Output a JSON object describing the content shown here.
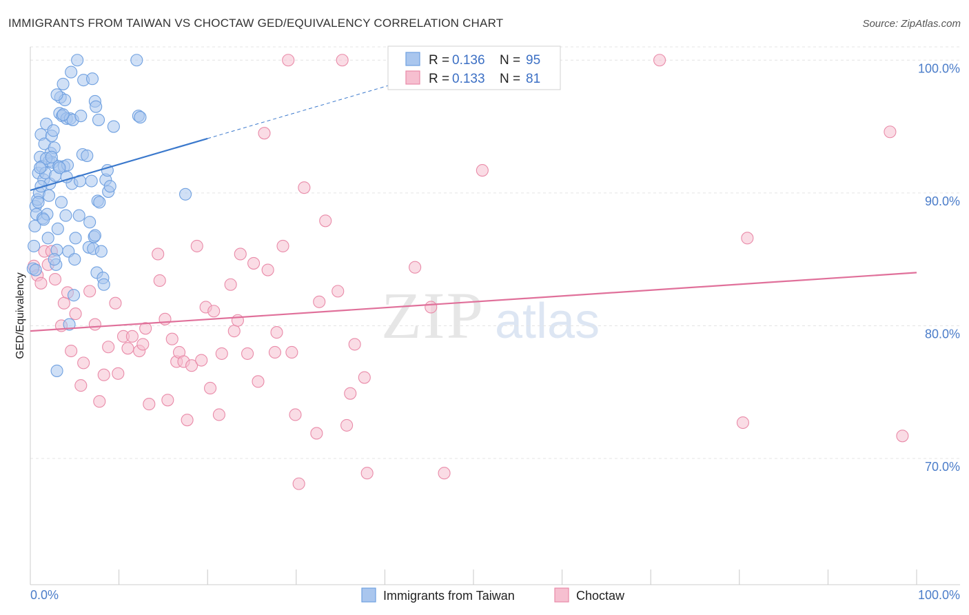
{
  "colors": {
    "blue": "#6fa0e0",
    "blue_fill": "#a9c6ee",
    "blue_line": "#3a78cc",
    "pink": "#e98aa8",
    "pink_fill": "#f6bfd0",
    "pink_line": "#e0709a",
    "grid": "#e4e4e4",
    "tick": "#4a7cc9"
  },
  "chart_data": {
    "type": "scatter",
    "title": "IMMIGRANTS FROM TAIWAN VS CHOCTAW GED/EQUIVALENCY CORRELATION CHART",
    "source": "Source: ZipAtlas.com",
    "ylabel": "GED/Equivalency",
    "xlabel": "",
    "xlim": [
      0,
      100
    ],
    "ylim": [
      60.5,
      101
    ],
    "x_tick_labels": {
      "left": "0.0%",
      "right": "100.0%"
    },
    "y_ticks": [
      {
        "value": 70,
        "label": "70.0%"
      },
      {
        "value": 80,
        "label": "80.0%"
      },
      {
        "value": 90,
        "label": "90.0%"
      },
      {
        "value": 100,
        "label": "100.0%"
      }
    ],
    "grid": true,
    "watermark": {
      "part1": "ZIP",
      "part2": "atlas"
    },
    "legend": {
      "entries": [
        {
          "r_label": "R = ",
          "r_value": "0.136",
          "n_label": "N = ",
          "n_value": "95"
        },
        {
          "r_label": "R = ",
          "r_value": "0.133",
          "n_label": "N = ",
          "n_value": " 81"
        }
      ]
    },
    "series": [
      {
        "name": "Immigrants from Taiwan",
        "trend": {
          "x0": 0,
          "y0": 90.2,
          "x1": 20,
          "y1": 94.1,
          "dash_to_x": 42,
          "dash_to_y": 98.4
        },
        "points": [
          [
            0.3,
            84.3
          ],
          [
            0.4,
            86.0
          ],
          [
            0.5,
            87.5
          ],
          [
            0.6,
            89.0
          ],
          [
            0.7,
            88.4
          ],
          [
            0.8,
            89.5
          ],
          [
            0.9,
            91.5
          ],
          [
            1.0,
            90.0
          ],
          [
            1.1,
            92.7
          ],
          [
            1.2,
            94.4
          ],
          [
            1.3,
            92.0
          ],
          [
            1.4,
            88.1
          ],
          [
            1.5,
            91.0
          ],
          [
            1.6,
            93.7
          ],
          [
            1.7,
            91.5
          ],
          [
            1.8,
            95.2
          ],
          [
            1.9,
            88.4
          ],
          [
            2.0,
            86.6
          ],
          [
            2.1,
            92.4
          ],
          [
            2.2,
            90.7
          ],
          [
            2.3,
            93.0
          ],
          [
            2.4,
            94.3
          ],
          [
            2.5,
            92.3
          ],
          [
            2.6,
            94.7
          ],
          [
            2.7,
            93.4
          ],
          [
            2.8,
            91.3
          ],
          [
            2.9,
            84.6
          ],
          [
            3.0,
            85.7
          ],
          [
            3.1,
            87.3
          ],
          [
            3.2,
            92.0
          ],
          [
            3.3,
            96.0
          ],
          [
            3.4,
            97.2
          ],
          [
            3.5,
            89.3
          ],
          [
            3.6,
            95.8
          ],
          [
            3.7,
            98.2
          ],
          [
            3.8,
            92.0
          ],
          [
            3.9,
            97.0
          ],
          [
            4.0,
            88.3
          ],
          [
            4.1,
            95.6
          ],
          [
            4.2,
            92.1
          ],
          [
            4.3,
            85.6
          ],
          [
            4.4,
            80.1
          ],
          [
            4.5,
            95.6
          ],
          [
            4.6,
            99.1
          ],
          [
            4.7,
            90.7
          ],
          [
            4.8,
            95.5
          ],
          [
            4.9,
            82.3
          ],
          [
            5.0,
            85.0
          ],
          [
            5.1,
            86.6
          ],
          [
            5.3,
            100.0
          ],
          [
            5.5,
            88.3
          ],
          [
            5.7,
            95.8
          ],
          [
            5.9,
            92.9
          ],
          [
            6.0,
            98.5
          ],
          [
            6.4,
            92.8
          ],
          [
            6.6,
            85.9
          ],
          [
            6.9,
            90.9
          ],
          [
            7.0,
            98.6
          ],
          [
            7.1,
            85.8
          ],
          [
            7.2,
            86.7
          ],
          [
            7.3,
            96.9
          ],
          [
            7.4,
            96.5
          ],
          [
            7.5,
            84.0
          ],
          [
            7.6,
            89.4
          ],
          [
            7.7,
            95.5
          ],
          [
            7.8,
            89.3
          ],
          [
            8.0,
            85.6
          ],
          [
            8.2,
            83.6
          ],
          [
            8.3,
            83.1
          ],
          [
            8.5,
            91.0
          ],
          [
            8.7,
            91.7
          ],
          [
            8.8,
            90.1
          ],
          [
            9.0,
            90.5
          ],
          [
            9.4,
            95.0
          ],
          [
            12.0,
            100.0
          ],
          [
            12.2,
            95.8
          ],
          [
            12.4,
            95.7
          ],
          [
            17.5,
            89.9
          ],
          [
            0.6,
            84.2
          ],
          [
            1.2,
            90.5
          ],
          [
            2.1,
            89.8
          ],
          [
            0.9,
            89.3
          ],
          [
            1.8,
            92.6
          ],
          [
            3.0,
            97.4
          ],
          [
            3.3,
            91.9
          ],
          [
            1.5,
            88.0
          ],
          [
            2.7,
            85.0
          ],
          [
            4.1,
            91.2
          ],
          [
            5.6,
            90.9
          ],
          [
            6.7,
            87.8
          ],
          [
            1.1,
            91.9
          ],
          [
            2.4,
            92.7
          ],
          [
            3.7,
            95.9
          ],
          [
            7.3,
            86.8
          ],
          [
            3.0,
            76.6
          ]
        ]
      },
      {
        "name": "Choctaw",
        "trend": {
          "x0": 0,
          "y0": 79.6,
          "x1": 100,
          "y1": 84.0
        },
        "points": [
          [
            0.4,
            84.5
          ],
          [
            0.8,
            83.8
          ],
          [
            1.2,
            83.2
          ],
          [
            1.6,
            85.6
          ],
          [
            2.0,
            84.6
          ],
          [
            2.4,
            85.6
          ],
          [
            2.8,
            83.5
          ],
          [
            3.5,
            80.0
          ],
          [
            3.8,
            81.7
          ],
          [
            4.2,
            82.5
          ],
          [
            4.6,
            78.1
          ],
          [
            5.1,
            80.9
          ],
          [
            5.7,
            75.5
          ],
          [
            6.0,
            77.2
          ],
          [
            6.7,
            82.6
          ],
          [
            7.3,
            80.1
          ],
          [
            7.8,
            74.3
          ],
          [
            8.3,
            76.3
          ],
          [
            8.8,
            78.4
          ],
          [
            9.6,
            81.7
          ],
          [
            9.9,
            76.4
          ],
          [
            10.5,
            79.2
          ],
          [
            11.0,
            78.3
          ],
          [
            11.5,
            79.2
          ],
          [
            12.3,
            78.1
          ],
          [
            12.7,
            78.6
          ],
          [
            13.0,
            79.8
          ],
          [
            13.4,
            74.1
          ],
          [
            14.4,
            85.4
          ],
          [
            14.6,
            83.4
          ],
          [
            15.2,
            80.5
          ],
          [
            15.5,
            74.4
          ],
          [
            16.0,
            79.0
          ],
          [
            16.5,
            77.3
          ],
          [
            16.8,
            78.0
          ],
          [
            17.3,
            77.3
          ],
          [
            17.7,
            72.9
          ],
          [
            18.2,
            77.0
          ],
          [
            18.8,
            86.0
          ],
          [
            19.3,
            77.4
          ],
          [
            19.8,
            81.4
          ],
          [
            20.3,
            75.3
          ],
          [
            20.7,
            81.1
          ],
          [
            21.3,
            73.3
          ],
          [
            21.6,
            77.9
          ],
          [
            22.6,
            83.1
          ],
          [
            23.0,
            79.6
          ],
          [
            23.4,
            80.4
          ],
          [
            23.7,
            85.4
          ],
          [
            24.5,
            77.9
          ],
          [
            25.2,
            84.7
          ],
          [
            25.7,
            75.8
          ],
          [
            26.4,
            94.5
          ],
          [
            26.8,
            84.2
          ],
          [
            27.6,
            78.0
          ],
          [
            27.8,
            79.5
          ],
          [
            28.5,
            86.0
          ],
          [
            29.1,
            100.0
          ],
          [
            29.5,
            78.0
          ],
          [
            29.9,
            73.3
          ],
          [
            30.3,
            68.1
          ],
          [
            30.9,
            90.4
          ],
          [
            32.3,
            71.9
          ],
          [
            32.6,
            81.8
          ],
          [
            33.3,
            87.9
          ],
          [
            34.7,
            82.6
          ],
          [
            35.2,
            100.0
          ],
          [
            35.7,
            72.5
          ],
          [
            36.1,
            74.9
          ],
          [
            36.6,
            78.6
          ],
          [
            37.7,
            76.1
          ],
          [
            38.0,
            68.9
          ],
          [
            43.4,
            84.4
          ],
          [
            45.2,
            81.4
          ],
          [
            46.7,
            68.9
          ],
          [
            51.0,
            91.7
          ],
          [
            71.0,
            100.0
          ],
          [
            80.4,
            72.7
          ],
          [
            80.9,
            86.6
          ],
          [
            97.0,
            94.6
          ],
          [
            98.4,
            71.7
          ]
        ]
      }
    ]
  }
}
